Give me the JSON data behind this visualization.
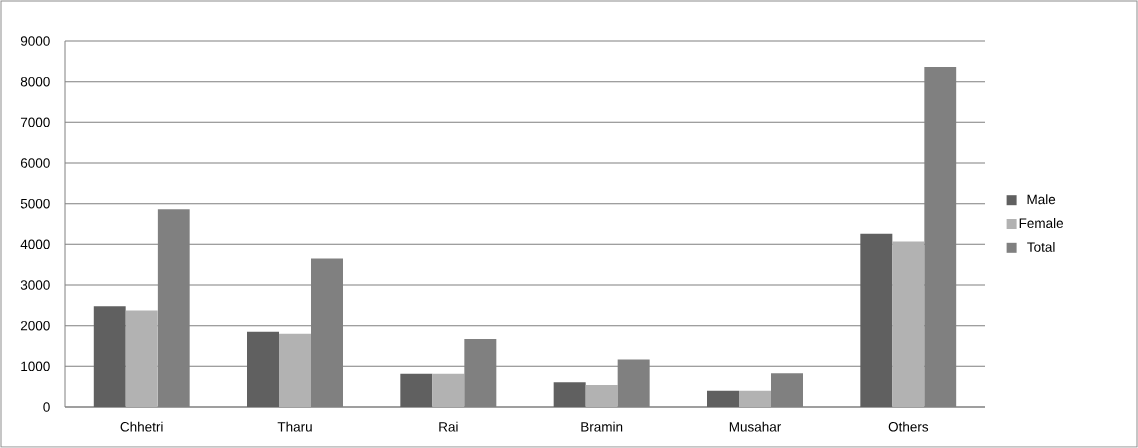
{
  "chart_data": {
    "type": "bar",
    "categories": [
      "Chhetri",
      "Tharu",
      "Rai",
      "Bramin",
      "Musahar",
      "Others"
    ],
    "series": [
      {
        "name": "Male",
        "color": "#606060",
        "values": [
          2480,
          1850,
          820,
          610,
          400,
          4260
        ]
      },
      {
        "name": "Female",
        "color": "#b2b2b2",
        "values": [
          2370,
          1800,
          820,
          540,
          400,
          4070
        ]
      },
      {
        "name": "Total",
        "color": "#808080",
        "values": [
          4860,
          3650,
          1670,
          1170,
          830,
          8360
        ]
      }
    ],
    "ylim": [
      0,
      9000
    ],
    "yticks": [
      0,
      1000,
      2000,
      3000,
      4000,
      5000,
      6000,
      7000,
      8000,
      9000
    ],
    "grid": "y",
    "legend": "right"
  }
}
